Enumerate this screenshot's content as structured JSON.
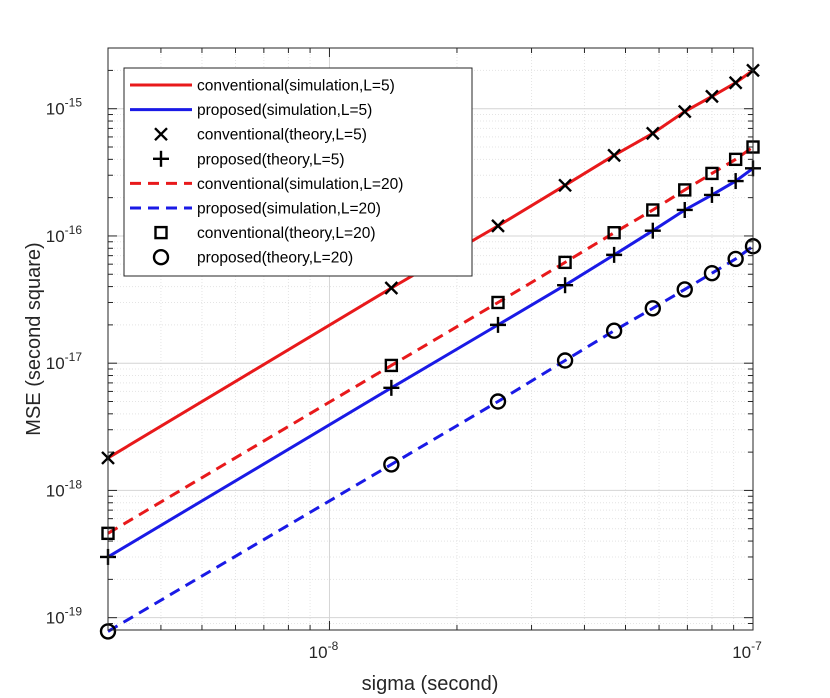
{
  "chart_data": {
    "type": "line",
    "xscale": "log",
    "yscale": "log",
    "xlabel": "sigma (second)",
    "ylabel": "MSE (second square)",
    "xlim": [
      3e-09,
      1e-07
    ],
    "ylim": [
      8e-20,
      3e-15
    ],
    "grid": true,
    "minor_grid": true,
    "legend_position": "top-left",
    "x_ticks": [
      {
        "value": 1e-08,
        "base": "10",
        "exp": "-8"
      },
      {
        "value": 1e-07,
        "base": "10",
        "exp": "-7"
      }
    ],
    "y_ticks": [
      {
        "value": 1e-19,
        "base": "10",
        "exp": "-19"
      },
      {
        "value": 1e-18,
        "base": "10",
        "exp": "-18"
      },
      {
        "value": 1e-17,
        "base": "10",
        "exp": "-17"
      },
      {
        "value": 1e-16,
        "base": "10",
        "exp": "-16"
      },
      {
        "value": 1e-15,
        "base": "10",
        "exp": "-15"
      }
    ],
    "x": [
      3e-09,
      1.4e-08,
      2.5e-08,
      3.6e-08,
      4.7e-08,
      5.8e-08,
      6.9e-08,
      8e-08,
      9.1e-08,
      1e-07
    ],
    "series": [
      {
        "name": "conventional(simulation,L=5)",
        "kind": "line",
        "color": "#e8191b",
        "dash": "solid",
        "values": [
          1.8e-18,
          3.9e-17,
          1.2e-16,
          2.5e-16,
          4.3e-16,
          6.4e-16,
          9.5e-16,
          1.25e-15,
          1.6e-15,
          2e-15
        ]
      },
      {
        "name": "proposed(simulation,L=5)",
        "kind": "line",
        "color": "#1a1ae6",
        "dash": "solid",
        "values": [
          3e-19,
          6.4e-18,
          2e-17,
          4.1e-17,
          7.1e-17,
          1.1e-16,
          1.6e-16,
          2.1e-16,
          2.7e-16,
          3.4e-16
        ]
      },
      {
        "name": "conventional(theory,L=5)",
        "kind": "marker",
        "marker": "x",
        "color": "#000000",
        "values": [
          1.8e-18,
          3.9e-17,
          1.2e-16,
          2.5e-16,
          4.3e-16,
          6.4e-16,
          9.5e-16,
          1.25e-15,
          1.6e-15,
          2e-15
        ]
      },
      {
        "name": "proposed(theory,L=5)",
        "kind": "marker",
        "marker": "plus",
        "color": "#000000",
        "values": [
          3e-19,
          6.4e-18,
          2e-17,
          4.1e-17,
          7.1e-17,
          1.1e-16,
          1.6e-16,
          2.1e-16,
          2.7e-16,
          3.4e-16
        ]
      },
      {
        "name": "conventional(simulation,L=20)",
        "kind": "line",
        "color": "#e8191b",
        "dash": "dashed",
        "values": [
          4.6e-19,
          9.6e-18,
          3e-17,
          6.2e-17,
          1.06e-16,
          1.6e-16,
          2.3e-16,
          3.1e-16,
          4e-16,
          5e-16
        ]
      },
      {
        "name": "proposed(simulation,L=20)",
        "kind": "line",
        "color": "#1a1ae6",
        "dash": "dashed",
        "values": [
          7.8e-20,
          1.6e-18,
          5e-18,
          1.05e-17,
          1.8e-17,
          2.7e-17,
          3.8e-17,
          5.1e-17,
          6.6e-17,
          8.3e-17
        ]
      },
      {
        "name": "conventional(theory,L=20)",
        "kind": "marker",
        "marker": "square",
        "color": "#000000",
        "values": [
          4.6e-19,
          9.6e-18,
          3e-17,
          6.2e-17,
          1.06e-16,
          1.6e-16,
          2.3e-16,
          3.1e-16,
          4e-16,
          5e-16
        ]
      },
      {
        "name": "proposed(theory,L=20)",
        "kind": "marker",
        "marker": "circle",
        "color": "#000000",
        "values": [
          7.8e-20,
          1.6e-18,
          5e-18,
          1.05e-17,
          1.8e-17,
          2.7e-17,
          3.8e-17,
          5.1e-17,
          6.6e-17,
          8.3e-17
        ]
      }
    ]
  }
}
